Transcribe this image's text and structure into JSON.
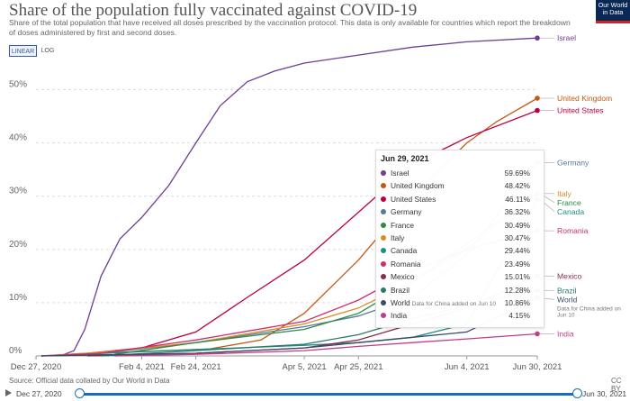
{
  "header": {
    "title": "Share of the population fully vaccinated against COVID-19",
    "subtitle": "Share of the total population that have received all doses prescribed by the vaccination protocol. This data is only available for countries which report the breakdown of doses administered by first and second doses.",
    "logo_line1": "Our World",
    "logo_line2": "in Data"
  },
  "controls": {
    "linear_label": "LINEAR",
    "log_label": "LOG"
  },
  "tooltip": {
    "date": "Jun 29, 2021",
    "rows": [
      {
        "name": "Israel",
        "value": "59.69%",
        "color": "#6d3e91"
      },
      {
        "name": "United Kingdom",
        "value": "48.42%",
        "color": "#c05917"
      },
      {
        "name": "United States",
        "value": "46.11%",
        "color": "#b9003d"
      },
      {
        "name": "Germany",
        "value": "36.32%",
        "color": "#58799c"
      },
      {
        "name": "France",
        "value": "30.49%",
        "color": "#2a8b45"
      },
      {
        "name": "Italy",
        "value": "30.47%",
        "color": "#dc8a25"
      },
      {
        "name": "Canada",
        "value": "29.44%",
        "color": "#1e8d86"
      },
      {
        "name": "Romania",
        "value": "23.49%",
        "color": "#cf2d6c"
      },
      {
        "name": "Mexico",
        "value": "15.01%",
        "color": "#8a2a44"
      },
      {
        "name": "Brazil",
        "value": "12.28%",
        "color": "#2c7a6a"
      },
      {
        "name": "World",
        "note": "Data for China added on Jun 10",
        "value": "10.86%",
        "color": "#3b4a6b"
      },
      {
        "name": "India",
        "value": "4.15%",
        "color": "#c23c8a"
      }
    ]
  },
  "footer": {
    "source": "Source: Official data collated by Our World in Data",
    "license": "CC BY",
    "timeline_start": "Dec 27, 2020",
    "timeline_end": "Jun 30, 2021"
  },
  "chart_data": {
    "type": "line",
    "x_range": [
      "2020-12-27",
      "2021-06-30"
    ],
    "xticks": [
      "Dec 27, 2020",
      "Feb 4, 2021",
      "Feb 24, 2021",
      "Apr 5, 2021",
      "Apr 25, 2021",
      "Jun 4, 2021",
      "Jun 30, 2021"
    ],
    "xtick_dates": [
      "2020-12-27",
      "2021-02-04",
      "2021-02-24",
      "2021-04-05",
      "2021-04-25",
      "2021-06-04",
      "2021-06-30"
    ],
    "ylim": [
      0,
      55
    ],
    "yticks": [
      0,
      10,
      20,
      30,
      40,
      50
    ],
    "ytick_labels": [
      "0%",
      "10%",
      "20%",
      "30%",
      "40%",
      "50%"
    ],
    "grid": "horizontal",
    "series": [
      {
        "name": "Israel",
        "color": "#6d3e91",
        "end_label": "Israel",
        "points": [
          [
            "2021-01-05",
            0
          ],
          [
            "2021-01-10",
            1
          ],
          [
            "2021-01-14",
            5
          ],
          [
            "2021-01-20",
            15
          ],
          [
            "2021-01-27",
            22
          ],
          [
            "2021-02-04",
            26
          ],
          [
            "2021-02-14",
            32
          ],
          [
            "2021-02-24",
            40
          ],
          [
            "2021-03-05",
            47
          ],
          [
            "2021-03-15",
            51.5
          ],
          [
            "2021-03-25",
            53.5
          ],
          [
            "2021-04-05",
            55
          ],
          [
            "2021-04-25",
            56.5
          ],
          [
            "2021-05-15",
            58
          ],
          [
            "2021-06-04",
            59
          ],
          [
            "2021-06-30",
            59.7
          ]
        ]
      },
      {
        "name": "United Kingdom",
        "color": "#c05917",
        "end_label": "United Kingdom",
        "points": [
          [
            "2020-12-29",
            0
          ],
          [
            "2021-02-01",
            0.8
          ],
          [
            "2021-03-01",
            1.3
          ],
          [
            "2021-03-20",
            3
          ],
          [
            "2021-04-05",
            8
          ],
          [
            "2021-04-15",
            13
          ],
          [
            "2021-04-25",
            18
          ],
          [
            "2021-05-05",
            24
          ],
          [
            "2021-05-15",
            30
          ],
          [
            "2021-05-25",
            35
          ],
          [
            "2021-06-04",
            40
          ],
          [
            "2021-06-15",
            44
          ],
          [
            "2021-06-30",
            48.4
          ]
        ]
      },
      {
        "name": "United States",
        "color": "#b9003d",
        "end_label": "United States",
        "points": [
          [
            "2020-12-29",
            0
          ],
          [
            "2021-01-15",
            0.5
          ],
          [
            "2021-02-04",
            1.5
          ],
          [
            "2021-02-24",
            4.5
          ],
          [
            "2021-03-15",
            11
          ],
          [
            "2021-04-05",
            18
          ],
          [
            "2021-04-25",
            27
          ],
          [
            "2021-05-15",
            36
          ],
          [
            "2021-06-04",
            41
          ],
          [
            "2021-06-30",
            46.1
          ]
        ]
      },
      {
        "name": "Germany",
        "color": "#58799c",
        "end_label": "Germany",
        "points": [
          [
            "2020-12-29",
            0
          ],
          [
            "2021-01-20",
            0.5
          ],
          [
            "2021-02-24",
            2.5
          ],
          [
            "2021-04-05",
            5.5
          ],
          [
            "2021-04-25",
            7.5
          ],
          [
            "2021-05-15",
            11
          ],
          [
            "2021-06-04",
            19
          ],
          [
            "2021-06-30",
            36.3
          ]
        ]
      },
      {
        "name": "Italy",
        "color": "#dc8a25",
        "end_label": "Italy",
        "points": [
          [
            "2020-12-29",
            0
          ],
          [
            "2021-01-20",
            0.7
          ],
          [
            "2021-02-24",
            2.5
          ],
          [
            "2021-04-05",
            6
          ],
          [
            "2021-04-25",
            9
          ],
          [
            "2021-05-15",
            14
          ],
          [
            "2021-06-04",
            20
          ],
          [
            "2021-06-30",
            30.5
          ]
        ]
      },
      {
        "name": "Canada",
        "color": "#1e8d86",
        "end_label": "Canada",
        "points": [
          [
            "2020-12-29",
            0
          ],
          [
            "2021-02-24",
            1.2
          ],
          [
            "2021-04-05",
            2
          ],
          [
            "2021-04-25",
            2.5
          ],
          [
            "2021-05-15",
            3.5
          ],
          [
            "2021-06-04",
            6
          ],
          [
            "2021-06-30",
            29.4
          ]
        ]
      },
      {
        "name": "France",
        "color": "#2a8b45",
        "end_label": "France",
        "points": [
          [
            "2020-12-29",
            0
          ],
          [
            "2021-01-25",
            0.3
          ],
          [
            "2021-02-24",
            2.5
          ],
          [
            "2021-04-05",
            5
          ],
          [
            "2021-04-25",
            8
          ],
          [
            "2021-05-15",
            14
          ],
          [
            "2021-06-04",
            21
          ],
          [
            "2021-06-30",
            30.5
          ]
        ]
      },
      {
        "name": "Romania",
        "color": "#cf2d6c",
        "end_label": "Romania",
        "points": [
          [
            "2020-12-29",
            0
          ],
          [
            "2021-01-20",
            0.5
          ],
          [
            "2021-02-24",
            3
          ],
          [
            "2021-04-05",
            6.5
          ],
          [
            "2021-04-25",
            10.5
          ],
          [
            "2021-05-15",
            16
          ],
          [
            "2021-06-04",
            20
          ],
          [
            "2021-06-30",
            23.5
          ]
        ]
      },
      {
        "name": "Mexico",
        "color": "#8a2a44",
        "end_label": "Mexico",
        "points": [
          [
            "2021-01-15",
            0
          ],
          [
            "2021-02-24",
            0.5
          ],
          [
            "2021-04-05",
            1.5
          ],
          [
            "2021-04-25",
            3
          ],
          [
            "2021-05-15",
            6
          ],
          [
            "2021-06-04",
            9
          ],
          [
            "2021-06-30",
            15
          ]
        ]
      },
      {
        "name": "Brazil",
        "color": "#2c7a6a",
        "end_label": "Brazil",
        "points": [
          [
            "2021-01-20",
            0
          ],
          [
            "2021-02-24",
            1
          ],
          [
            "2021-04-05",
            2.2
          ],
          [
            "2021-04-25",
            4
          ],
          [
            "2021-05-15",
            7
          ],
          [
            "2021-06-04",
            9.5
          ],
          [
            "2021-06-30",
            12.3
          ]
        ]
      },
      {
        "name": "World",
        "color": "#3b4a6b",
        "end_label": "World",
        "end_note_line1": "Data for China added on",
        "end_note_line2": "Jun 10",
        "points": [
          [
            "2020-12-29",
            0
          ],
          [
            "2021-02-24",
            0.5
          ],
          [
            "2021-04-05",
            1.5
          ],
          [
            "2021-04-25",
            2.5
          ],
          [
            "2021-05-15",
            3.5
          ],
          [
            "2021-06-04",
            4.5
          ],
          [
            "2021-06-12",
            6.5
          ],
          [
            "2021-06-30",
            10.9
          ]
        ]
      },
      {
        "name": "India",
        "color": "#c23c8a",
        "end_label": "India",
        "points": [
          [
            "2021-01-25",
            0
          ],
          [
            "2021-02-24",
            0.3
          ],
          [
            "2021-04-05",
            1
          ],
          [
            "2021-04-25",
            1.8
          ],
          [
            "2021-05-15",
            2.5
          ],
          [
            "2021-06-04",
            3.2
          ],
          [
            "2021-06-30",
            4.15
          ]
        ]
      }
    ]
  }
}
